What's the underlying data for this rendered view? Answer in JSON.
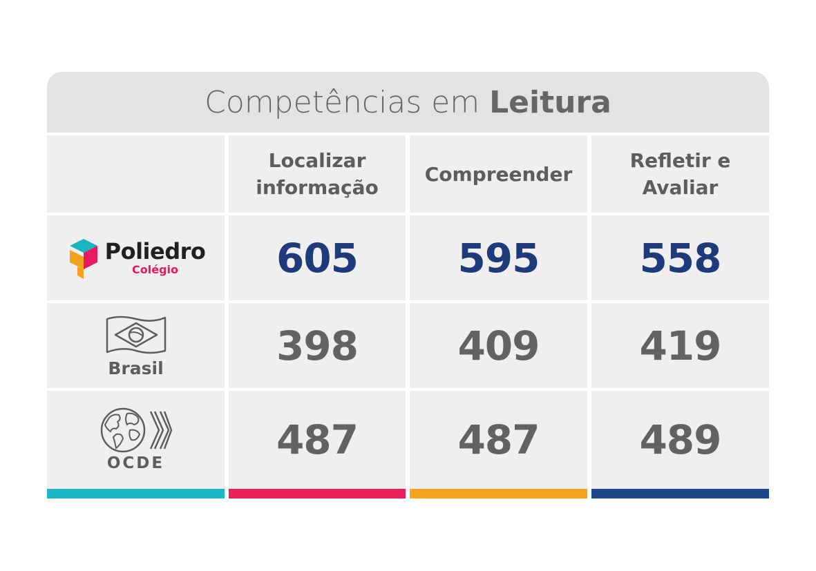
{
  "title": {
    "prefix": "Competências em",
    "emphasis": "Leitura"
  },
  "chart_data": {
    "type": "table",
    "columns": [
      "Localizar informação",
      "Compreender",
      "Refletir e Avaliar"
    ],
    "column_lines": [
      [
        "Localizar",
        "informação"
      ],
      [
        "Compreender"
      ],
      [
        "Refletir e",
        "Avaliar"
      ]
    ],
    "rows": [
      {
        "label": "Poliedro",
        "sublabel": "Colégio",
        "values": [
          605,
          595,
          558
        ]
      },
      {
        "label": "Brasil",
        "values": [
          398,
          409,
          419
        ]
      },
      {
        "label": "OCDE",
        "values": [
          487,
          487,
          489
        ]
      }
    ]
  },
  "colors": {
    "highlight_value": "#1f3a7a",
    "value": "#626262",
    "column_bars": [
      "#1cb8c5",
      "#e8215a",
      "#f5a21c",
      "#1f4688"
    ]
  },
  "icons": [
    "poliedro-logo-icon",
    "brazil-flag-icon",
    "globe-icon",
    "ocde-chevrons-icon"
  ]
}
